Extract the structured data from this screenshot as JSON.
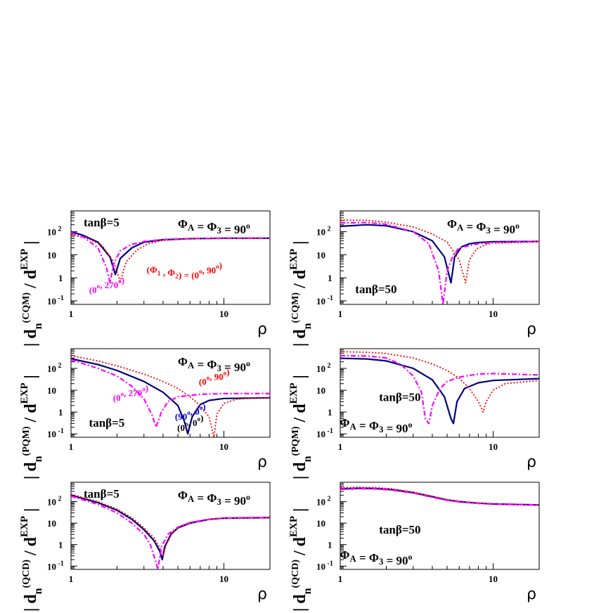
{
  "colors": {
    "frame": "#000000",
    "blue": "#000080",
    "red": "#ff0000",
    "magenta": "#ff00ff",
    "blue_label": "#0000cc"
  },
  "ylabels": {
    "cqm": {
      "base": "| d",
      "sub": "n",
      "sup": "(CQM)",
      "mid": " / d",
      "sup2": "EXP",
      "end": " |"
    },
    "pqm": {
      "base": "| d",
      "sub": "n",
      "sup": "(PQM)",
      "mid": " / d",
      "sup2": "EXP",
      "end": " |"
    },
    "qcd": {
      "base": "| d",
      "sub": "n",
      "sup": "(QCD)",
      "mid": " / d",
      "sup2": "EXP",
      "end": " |"
    }
  },
  "xlabel": "ρ",
  "xticks": [
    "1",
    "10"
  ],
  "yticks": [
    {
      "val": 100,
      "base": "10",
      "sup": " 2"
    },
    {
      "val": 10,
      "base": "10",
      "sup": ""
    },
    {
      "val": 1,
      "base": "1",
      "sup": ""
    },
    {
      "val": 0.1,
      "base": "10",
      "sup": " -1"
    }
  ],
  "chart_data": [
    {
      "type": "line",
      "id": "cqm-tb5",
      "xscale": "log",
      "yscale": "log",
      "xlim": [
        1,
        20
      ],
      "ylim": [
        0.07,
        800
      ],
      "labels": [
        {
          "text": "tanβ=5",
          "color": "#000000",
          "size": 17,
          "pos": "top-left"
        },
        {
          "text": "Φ_A = Φ_3 = 90°",
          "color": "#000000",
          "size": 17,
          "pos": "top-right"
        },
        {
          "text": "(Φ_1 , Φ_2) = (0°, 90°)",
          "color": "#ff0000",
          "size": 13,
          "pos": "mid-center"
        },
        {
          "text": "(0°, 270°)",
          "color": "#ff00ff",
          "size": 13,
          "pos": "lower-left"
        }
      ],
      "series": [
        {
          "style": "solid",
          "color": "#000080",
          "x": [
            1,
            1.2,
            1.5,
            1.8,
            1.95,
            2.1,
            2.5,
            3,
            4,
            6,
            10,
            20
          ],
          "y": [
            100,
            70,
            35,
            8,
            1.4,
            7,
            20,
            35,
            45,
            50,
            52,
            52
          ]
        },
        {
          "style": "dotted",
          "color": "#ff0000",
          "x": [
            1,
            1.3,
            1.6,
            1.9,
            2.1,
            2.3,
            2.7,
            3.2,
            4,
            6,
            10,
            20
          ],
          "y": [
            75,
            50,
            25,
            5,
            0.7,
            5,
            16,
            30,
            42,
            49,
            52,
            52
          ]
        },
        {
          "style": "dashdot",
          "color": "#ff00ff",
          "x": [
            1,
            1.2,
            1.5,
            1.7,
            1.8,
            1.9,
            2.1,
            2.5,
            3,
            4,
            6,
            10,
            20
          ],
          "y": [
            90,
            60,
            20,
            3,
            0.6,
            4,
            15,
            28,
            38,
            46,
            50,
            52,
            52
          ]
        }
      ]
    },
    {
      "type": "line",
      "id": "cqm-tb50",
      "xscale": "log",
      "yscale": "log",
      "xlim": [
        1,
        20
      ],
      "ylim": [
        0.07,
        800
      ],
      "labels": [
        {
          "text": "Φ_A = Φ_3 = 90°",
          "color": "#000000",
          "size": 17,
          "pos": "top-right"
        },
        {
          "text": "tanβ=50",
          "color": "#000000",
          "size": 17,
          "pos": "lower-left"
        }
      ],
      "series": [
        {
          "style": "solid",
          "color": "#000080",
          "x": [
            1,
            1.5,
            2,
            3,
            4,
            4.8,
            5.3,
            5.6,
            6.2,
            7,
            8,
            10,
            20
          ],
          "y": [
            170,
            200,
            180,
            100,
            40,
            8,
            0.6,
            8,
            22,
            30,
            34,
            37,
            38
          ]
        },
        {
          "style": "dotted",
          "color": "#ff0000",
          "x": [
            1,
            1.5,
            2,
            3,
            4,
            5,
            6,
            6.6,
            7,
            7.8,
            9,
            10,
            20
          ],
          "y": [
            320,
            310,
            260,
            160,
            80,
            35,
            6,
            0.6,
            6,
            18,
            28,
            32,
            36
          ]
        },
        {
          "style": "dashdot",
          "color": "#ff00ff",
          "x": [
            1,
            1.5,
            2,
            3,
            3.8,
            4.4,
            4.7,
            5,
            5.5,
            6,
            8,
            10,
            20
          ],
          "y": [
            240,
            250,
            210,
            100,
            30,
            2,
            0.07,
            2,
            10,
            20,
            30,
            34,
            38
          ]
        }
      ]
    },
    {
      "type": "line",
      "id": "pqm-tb5",
      "xscale": "log",
      "yscale": "log",
      "xlim": [
        1,
        20
      ],
      "ylim": [
        0.07,
        800
      ],
      "labels": [
        {
          "text": "Φ_A = Φ_3 = 90°",
          "color": "#000000",
          "size": 17,
          "pos": "top-right"
        },
        {
          "text": "(0°, 90°)",
          "color": "#ff0000",
          "size": 13,
          "pos": "mid-right"
        },
        {
          "text": "(0°, 270°)",
          "color": "#ff00ff",
          "size": 13,
          "pos": "mid-left"
        },
        {
          "text": "tanβ=5",
          "color": "#000000",
          "size": 17,
          "pos": "lower-left"
        },
        {
          "text": "(90°, 0°)",
          "color": "#0000cc",
          "size": 13,
          "pos": "low-mid-right"
        },
        {
          "text": "(0°, 0°)",
          "color": "#000000",
          "size": 13,
          "pos": "bottom-mid-right"
        }
      ],
      "series": [
        {
          "style": "solid",
          "color": "#000080",
          "x": [
            1,
            1.5,
            2,
            3,
            4,
            5,
            5.5,
            5.8,
            6.2,
            7,
            8,
            10,
            20
          ],
          "y": [
            280,
            150,
            80,
            25,
            8,
            2,
            0.4,
            0.1,
            0.6,
            2.2,
            3.4,
            4.2,
            4.5
          ]
        },
        {
          "style": "dotted",
          "color": "#ff0000",
          "x": [
            1,
            1.5,
            2,
            3,
            4,
            5,
            6,
            7,
            8,
            8.6,
            9,
            10,
            12,
            15,
            20
          ],
          "y": [
            380,
            220,
            130,
            55,
            25,
            12,
            5,
            2,
            0.6,
            0.07,
            0.8,
            2.5,
            3.8,
            4.3,
            4.5
          ]
        },
        {
          "style": "dashdot",
          "color": "#ff00ff",
          "x": [
            1,
            1.5,
            2,
            2.5,
            3,
            3.4,
            3.6,
            3.9,
            4.3,
            5,
            7,
            10,
            20
          ],
          "y": [
            250,
            100,
            45,
            15,
            4,
            0.7,
            0.2,
            1,
            3,
            5,
            6.5,
            7,
            7
          ]
        }
      ]
    },
    {
      "type": "line",
      "id": "pqm-tb50",
      "xscale": "log",
      "yscale": "log",
      "xlim": [
        1,
        20
      ],
      "ylim": [
        0.07,
        800
      ],
      "labels": [
        {
          "text": "tanβ=50",
          "color": "#000000",
          "size": 17,
          "pos": "mid-left"
        },
        {
          "text": "Φ_A = Φ_3 = 90°",
          "color": "#000000",
          "size": 17,
          "pos": "lower-left"
        }
      ],
      "series": [
        {
          "style": "solid",
          "color": "#000080",
          "x": [
            1,
            1.5,
            2,
            3,
            4,
            4.8,
            5.3,
            5.5,
            5.8,
            6.5,
            8,
            10,
            20
          ],
          "y": [
            290,
            270,
            220,
            100,
            30,
            5,
            0.5,
            0.3,
            3,
            12,
            22,
            28,
            34
          ]
        },
        {
          "style": "dotted",
          "color": "#ff0000",
          "x": [
            1,
            1.5,
            2,
            3,
            4,
            5,
            6,
            7,
            8,
            8.6,
            9,
            10,
            12,
            20
          ],
          "y": [
            580,
            550,
            480,
            300,
            160,
            80,
            35,
            12,
            3,
            1,
            3,
            10,
            20,
            28
          ]
        },
        {
          "style": "dashdot",
          "color": "#ff00ff",
          "x": [
            1,
            1.5,
            2,
            2.5,
            3,
            3.4,
            3.6,
            3.8,
            4,
            4.5,
            5,
            6,
            8,
            10,
            20
          ],
          "y": [
            380,
            370,
            300,
            150,
            45,
            8,
            0.5,
            0.3,
            2,
            12,
            25,
            40,
            55,
            58,
            50
          ]
        }
      ]
    },
    {
      "type": "line",
      "id": "qcd-tb5",
      "xscale": "log",
      "yscale": "log",
      "xlim": [
        1,
        20
      ],
      "ylim": [
        0.07,
        800
      ],
      "labels": [
        {
          "text": "tanβ=5",
          "color": "#000000",
          "size": 17,
          "pos": "top-left"
        },
        {
          "text": "Φ_A = Φ_3 = 90°",
          "color": "#000000",
          "size": 17,
          "pos": "top-right"
        }
      ],
      "series": [
        {
          "style": "solid",
          "color": "#000080",
          "x": [
            1,
            1.5,
            2,
            2.5,
            3,
            3.5,
            3.8,
            3.95,
            4.1,
            4.5,
            5,
            6,
            8,
            10,
            20
          ],
          "y": [
            200,
            90,
            40,
            15,
            5,
            1.5,
            0.5,
            0.2,
            0.8,
            3,
            6,
            10,
            15,
            17,
            18
          ]
        },
        {
          "style": "dotted",
          "color": "#ff0000",
          "x": [
            1,
            1.5,
            2,
            2.5,
            3,
            3.5,
            3.8,
            4,
            4.2,
            4.6,
            5,
            6,
            8,
            10,
            20
          ],
          "y": [
            220,
            100,
            45,
            18,
            6,
            2,
            0.7,
            0.3,
            1,
            3.5,
            6.5,
            11,
            15.5,
            17.5,
            19
          ]
        },
        {
          "style": "dashdot",
          "color": "#ff00ff",
          "x": [
            1,
            1.5,
            2,
            2.5,
            3,
            3.3,
            3.55,
            3.7,
            3.9,
            4.3,
            5,
            6,
            8,
            10,
            20
          ],
          "y": [
            180,
            75,
            30,
            10,
            3,
            1,
            0.2,
            0.07,
            0.8,
            3,
            6.5,
            10.5,
            15,
            17,
            18
          ]
        }
      ]
    },
    {
      "type": "line",
      "id": "qcd-tb50",
      "xscale": "log",
      "yscale": "log",
      "xlim": [
        1,
        20
      ],
      "ylim": [
        0.07,
        800
      ],
      "labels": [
        {
          "text": "tanβ=50",
          "color": "#000000",
          "size": 17,
          "pos": "mid-left"
        },
        {
          "text": "Φ_A = Φ_3 = 90°",
          "color": "#000000",
          "size": 17,
          "pos": "lower-left"
        }
      ],
      "series": [
        {
          "style": "solid",
          "color": "#000080",
          "x": [
            1,
            1.3,
            1.7,
            2.2,
            3,
            4,
            5,
            6,
            8,
            10,
            20
          ],
          "y": [
            390,
            420,
            410,
            360,
            260,
            170,
            120,
            100,
            85,
            78,
            70
          ]
        },
        {
          "style": "dotted",
          "color": "#ff0000",
          "x": [
            1,
            1.3,
            1.7,
            2.2,
            3,
            4,
            5,
            6,
            8,
            10,
            20
          ],
          "y": [
            440,
            470,
            450,
            390,
            280,
            180,
            125,
            105,
            88,
            80,
            72
          ]
        },
        {
          "style": "dashdot",
          "color": "#ff00ff",
          "x": [
            1,
            1.3,
            1.7,
            2.2,
            3,
            4,
            5,
            6,
            8,
            10,
            20
          ],
          "y": [
            370,
            400,
            390,
            340,
            250,
            160,
            115,
            97,
            83,
            77,
            70
          ]
        }
      ]
    }
  ]
}
